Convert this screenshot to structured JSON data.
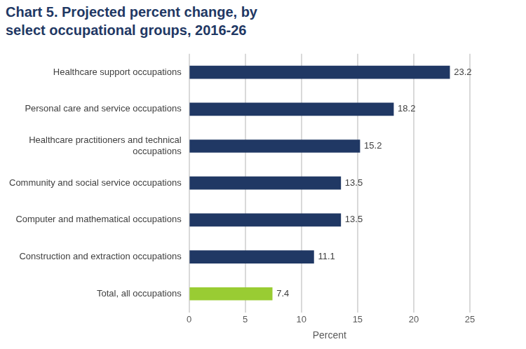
{
  "chart_data": {
    "type": "bar",
    "orientation": "horizontal",
    "title": "Chart 5. Projected percent change, by select occupational groups, 2016-26",
    "x_label": "Percent",
    "categories": [
      "Healthcare support occupations",
      "Personal care and service occupations",
      "Healthcare practitioners and technical occupations",
      "Community and social service occupations",
      "Computer and mathematical occupations",
      "Construction and extraction occupations",
      "Total, all occupations"
    ],
    "values": [
      23.2,
      18.2,
      15.2,
      13.5,
      13.5,
      11.1,
      7.4
    ],
    "colors": [
      "#203864",
      "#203864",
      "#203864",
      "#203864",
      "#203864",
      "#203864",
      "#99cc33"
    ],
    "xlim": [
      0,
      25
    ],
    "xticks": [
      0,
      5,
      10,
      15,
      20,
      25
    ],
    "grid": true,
    "data_labels": true
  }
}
